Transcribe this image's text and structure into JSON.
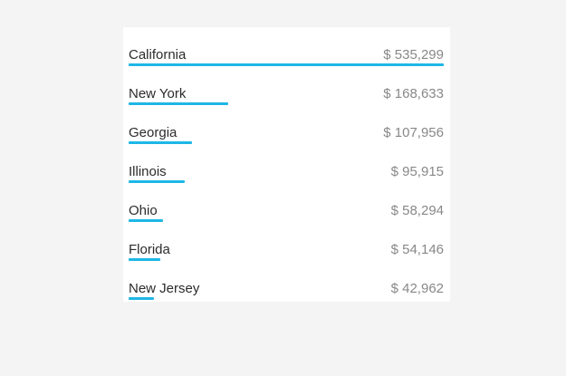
{
  "theme": {
    "bar_color": "#1eb7e6",
    "name_color": "#2b2b2b",
    "value_color": "#888888"
  },
  "ranking": {
    "rows": [
      {
        "state": "California",
        "value": "$ 535,299",
        "amount": 535299
      },
      {
        "state": "New York",
        "value": "$ 168,633",
        "amount": 168633
      },
      {
        "state": "Georgia",
        "value": "$ 107,956",
        "amount": 107956
      },
      {
        "state": "Illinois",
        "value": "$ 95,915",
        "amount": 95915
      },
      {
        "state": "Ohio",
        "value": "$ 58,294",
        "amount": 58294
      },
      {
        "state": "Florida",
        "value": "$ 54,146",
        "amount": 54146
      },
      {
        "state": "New Jersey",
        "value": "$ 42,962",
        "amount": 42962
      }
    ]
  }
}
